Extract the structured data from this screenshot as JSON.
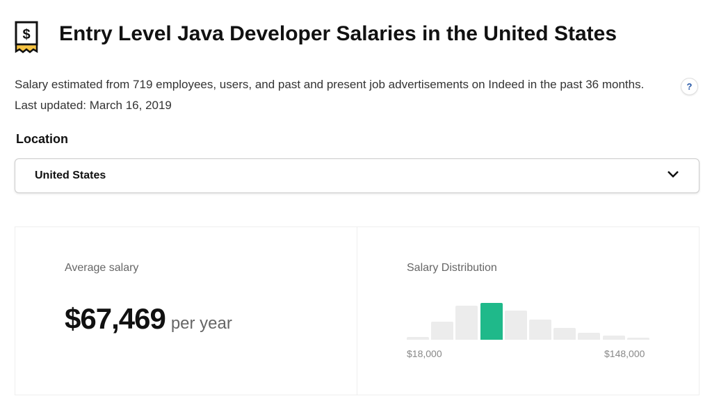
{
  "header": {
    "icon": "salary-receipt-icon",
    "title": "Entry Level Java Developer Salaries in the United States"
  },
  "description": "Salary estimated from 719 employees, users, and past and present job advertisements on Indeed in the past 36 months. Last updated: March 16, 2019",
  "help_label": "?",
  "location": {
    "label": "Location",
    "selected": "United States"
  },
  "average": {
    "label": "Average salary",
    "value": "$67,469",
    "unit": "per year"
  },
  "distribution": {
    "label": "Salary Distribution",
    "min_label": "$18,000",
    "max_label": "$148,000",
    "highlight_color": "#1fb98a",
    "bar_color": "#ececec",
    "relative_heights": [
      8,
      49,
      92,
      100,
      79,
      55,
      32,
      19,
      11,
      6
    ],
    "highlight_index": 3
  }
}
